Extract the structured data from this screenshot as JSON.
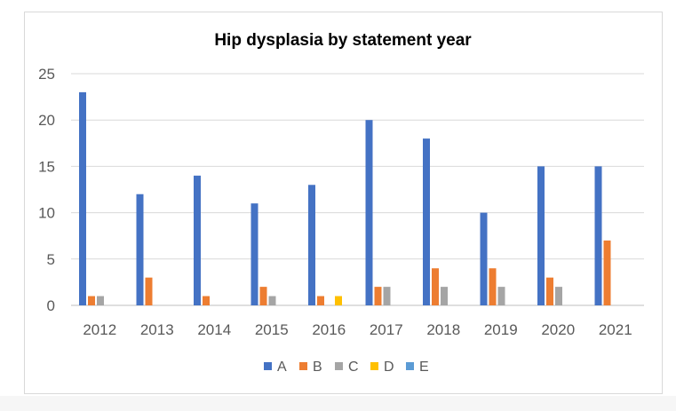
{
  "chart_data": {
    "type": "bar",
    "title": "Hip dysplasia by statement year",
    "xlabel": "",
    "ylabel": "",
    "categories": [
      "2012",
      "2013",
      "2014",
      "2015",
      "2016",
      "2017",
      "2018",
      "2019",
      "2020",
      "2021"
    ],
    "ylim": [
      0,
      25
    ],
    "yticks": [
      "0",
      "5",
      "10",
      "15",
      "20",
      "25"
    ],
    "grid": true,
    "legend_position": "bottom",
    "series": [
      {
        "name": "A",
        "color": "#4472C4",
        "values": [
          23,
          12,
          14,
          11,
          13,
          20,
          18,
          10,
          15,
          15
        ]
      },
      {
        "name": "B",
        "color": "#ED7D31",
        "values": [
          1,
          3,
          1,
          2,
          1,
          2,
          4,
          4,
          3,
          7
        ]
      },
      {
        "name": "C",
        "color": "#A5A5A5",
        "values": [
          1,
          0,
          0,
          1,
          0,
          2,
          2,
          2,
          2,
          0
        ]
      },
      {
        "name": "D",
        "color": "#FFC000",
        "values": [
          0,
          0,
          0,
          0,
          1,
          0,
          0,
          0,
          0,
          0
        ]
      },
      {
        "name": "E",
        "color": "#5B9BD5",
        "values": [
          0,
          0,
          0,
          0,
          0,
          0,
          0,
          0,
          0,
          0
        ]
      }
    ]
  }
}
